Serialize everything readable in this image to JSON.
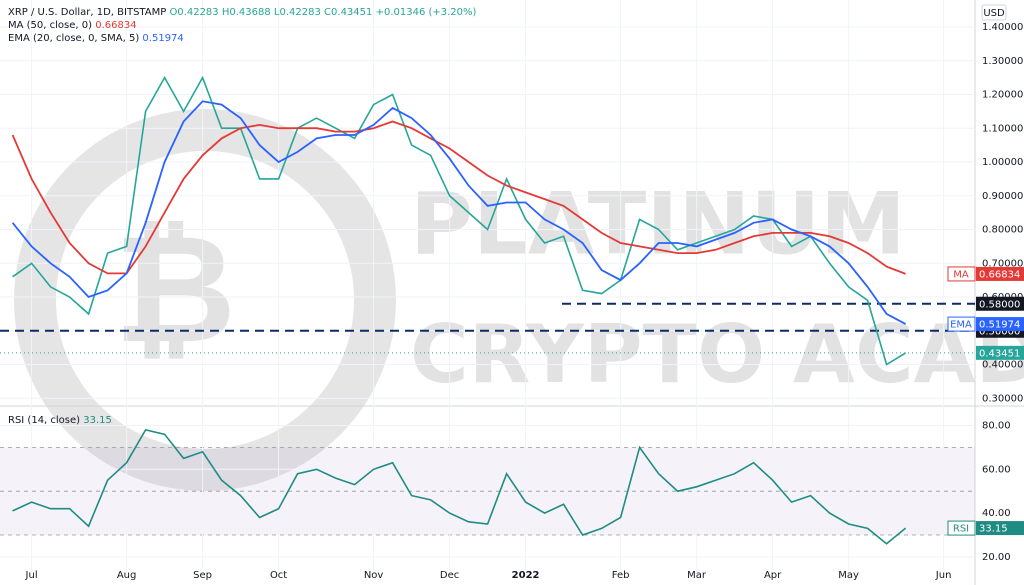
{
  "chart_data": [
    {
      "type": "line",
      "header": {
        "symbol": "XRP / U.S. Dollar, 1D, BITSTAMP",
        "open": "O0.42283",
        "high": "H0.43688",
        "low": "L0.42283",
        "close": "C0.43451",
        "change": "+0.01346 (+3.20%)"
      },
      "currency": "USD",
      "watermark": {
        "line1": "PLATINUM",
        "line2": "CRYPTO ACADEMY"
      },
      "categories": [
        null,
        "Jul",
        null,
        null,
        null,
        null,
        "Aug",
        null,
        null,
        null,
        "Sep",
        null,
        null,
        null,
        "Oct",
        null,
        null,
        null,
        null,
        "Nov",
        null,
        null,
        null,
        "Dec",
        null,
        null,
        null,
        "2022",
        null,
        null,
        null,
        null,
        "Feb",
        null,
        null,
        null,
        "Mar",
        null,
        null,
        null,
        "Apr",
        null,
        null,
        null,
        "May",
        null,
        null,
        null,
        null,
        "Jun"
      ],
      "values": [
        0.66,
        0.7,
        0.63,
        0.6,
        0.55,
        0.73,
        0.75,
        1.15,
        1.25,
        1.15,
        1.25,
        1.1,
        1.1,
        0.95,
        0.95,
        1.1,
        1.13,
        1.1,
        1.07,
        1.17,
        1.2,
        1.05,
        1.02,
        0.9,
        0.85,
        0.8,
        0.95,
        0.83,
        0.76,
        0.78,
        0.62,
        0.61,
        0.65,
        0.83,
        0.8,
        0.74,
        0.76,
        0.78,
        0.8,
        0.84,
        0.83,
        0.75,
        0.78,
        0.7,
        0.63,
        0.59,
        0.4,
        0.43451,
        null,
        null
      ],
      "color": "#26a69a",
      "series": [
        {
          "name": "MA",
          "legend": "MA (50, close, 0)",
          "color": "#e53935",
          "values": [
            1.08,
            0.95,
            0.85,
            0.76,
            0.7,
            0.67,
            0.67,
            0.75,
            0.85,
            0.95,
            1.02,
            1.07,
            1.1,
            1.11,
            1.1,
            1.1,
            1.1,
            1.09,
            1.09,
            1.1,
            1.12,
            1.1,
            1.07,
            1.04,
            1.0,
            0.96,
            0.93,
            0.91,
            0.89,
            0.87,
            0.83,
            0.79,
            0.76,
            0.75,
            0.74,
            0.73,
            0.73,
            0.74,
            0.76,
            0.78,
            0.79,
            0.79,
            0.79,
            0.78,
            0.76,
            0.73,
            0.69,
            0.66834,
            null,
            null
          ]
        },
        {
          "name": "EMA",
          "legend": "EMA (20, close, 0, SMA, 5)",
          "color": "#2962ff",
          "values": [
            0.82,
            0.75,
            0.7,
            0.66,
            0.6,
            0.62,
            0.67,
            0.82,
            1.0,
            1.12,
            1.18,
            1.17,
            1.13,
            1.05,
            1.0,
            1.03,
            1.07,
            1.08,
            1.08,
            1.11,
            1.16,
            1.13,
            1.08,
            1.01,
            0.93,
            0.87,
            0.88,
            0.88,
            0.83,
            0.8,
            0.76,
            0.68,
            0.65,
            0.7,
            0.76,
            0.76,
            0.75,
            0.77,
            0.79,
            0.82,
            0.83,
            0.8,
            0.78,
            0.75,
            0.7,
            0.63,
            0.55,
            0.51974,
            null,
            null
          ]
        }
      ],
      "levels": [
        {
          "value": 0.58,
          "label": "0.58000"
        },
        {
          "value": 0.5,
          "label": "0.50000"
        }
      ],
      "ylim": [
        0.28,
        1.48
      ],
      "yticks": [
        {
          "value": 0.3,
          "label": "0.30000"
        },
        {
          "value": 0.4,
          "label": "0.40000"
        },
        {
          "value": 0.5,
          "label": "0.50000"
        },
        {
          "value": 0.6,
          "label": "0.60000"
        },
        {
          "value": 0.7,
          "label": "0.70000"
        },
        {
          "value": 0.8,
          "label": "0.80000"
        },
        {
          "value": 0.9,
          "label": "0.90000"
        },
        {
          "value": 1.0,
          "label": "1.00000"
        },
        {
          "value": 1.1,
          "label": "1.10000"
        },
        {
          "value": 1.2,
          "label": "1.20000"
        },
        {
          "value": 1.3,
          "label": "1.30000"
        },
        {
          "value": 1.4,
          "label": "1.40000"
        }
      ],
      "grid": true
    },
    {
      "type": "line",
      "name": "RSI",
      "legend": "RSI (14, close)",
      "color": "#1e8c82",
      "values": [
        41,
        45,
        42,
        42,
        34,
        55,
        63,
        78,
        76,
        65,
        68,
        55,
        48,
        38,
        42,
        58,
        60,
        56,
        53,
        60,
        63,
        48,
        46,
        40,
        36,
        35,
        58,
        45,
        40,
        44,
        30,
        33,
        38,
        70,
        58,
        50,
        52,
        55,
        58,
        63,
        55,
        45,
        48,
        40,
        35,
        33,
        26,
        33.15,
        null,
        null
      ],
      "band": [
        30,
        70
      ],
      "midline": 50,
      "ylim": [
        14,
        88
      ],
      "yticks": [
        {
          "value": 20,
          "label": "20.00"
        },
        {
          "value": 40,
          "label": "40.00"
        },
        {
          "value": 60,
          "label": "60.00"
        },
        {
          "value": 80,
          "label": "80.00"
        }
      ],
      "grid": true
    }
  ]
}
